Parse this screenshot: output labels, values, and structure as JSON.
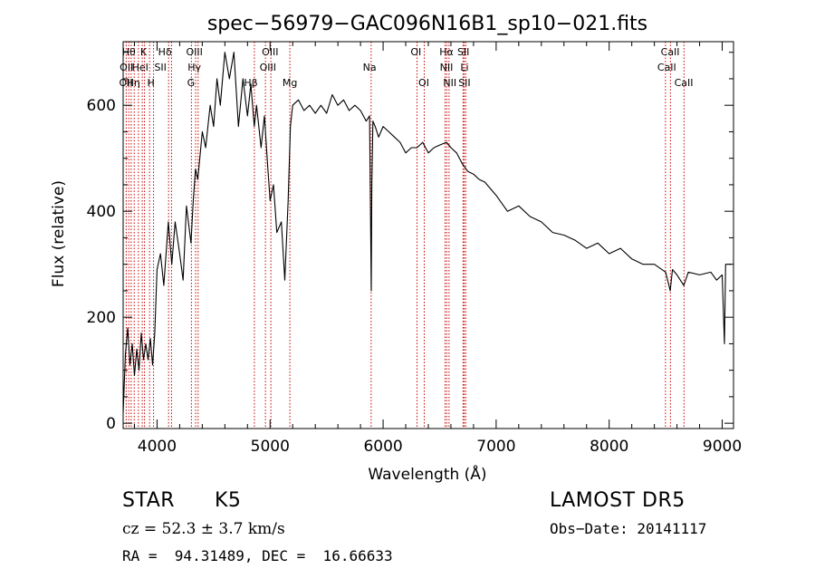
{
  "chart_data": {
    "type": "line",
    "title": "spec−56979−GAC096N16B1_sp10−021.fits",
    "xlabel": "Wavelength (Å)",
    "ylabel": "Flux (relative)",
    "xlim": [
      3700,
      9100
    ],
    "ylim": [
      -10,
      720
    ],
    "x_ticks": [
      4000,
      5000,
      6000,
      7000,
      8000,
      9000
    ],
    "x_tick_labels": [
      "4000",
      "5000",
      "6000",
      "7000",
      "8000",
      "9000"
    ],
    "y_ticks": [
      0,
      200,
      400,
      600
    ],
    "y_tick_labels": [
      "0",
      "200",
      "400",
      "600"
    ],
    "grid": false,
    "series": [
      {
        "name": "",
        "x": [
          3700,
          3720,
          3740,
          3760,
          3780,
          3800,
          3820,
          3840,
          3860,
          3880,
          3900,
          3920,
          3940,
          3960,
          3980,
          4000,
          4030,
          4060,
          4100,
          4130,
          4160,
          4200,
          4230,
          4260,
          4300,
          4320,
          4340,
          4360,
          4400,
          4430,
          4470,
          4500,
          4530,
          4560,
          4600,
          4640,
          4680,
          4720,
          4760,
          4800,
          4830,
          4860,
          4880,
          4920,
          4950,
          4980,
          5000,
          5030,
          5060,
          5100,
          5130,
          5160,
          5180,
          5200,
          5250,
          5300,
          5350,
          5400,
          5450,
          5500,
          5550,
          5600,
          5650,
          5700,
          5750,
          5800,
          5850,
          5880,
          5895,
          5900,
          5910,
          5930,
          5960,
          6000,
          6050,
          6100,
          6150,
          6200,
          6250,
          6300,
          6350,
          6400,
          6450,
          6500,
          6560,
          6600,
          6650,
          6700,
          6750,
          6800,
          6850,
          6900,
          7000,
          7100,
          7200,
          7300,
          7400,
          7500,
          7600,
          7700,
          7800,
          7900,
          8000,
          8100,
          8200,
          8300,
          8400,
          8500,
          8540,
          8560,
          8600,
          8660,
          8700,
          8800,
          8900,
          8950,
          9000,
          9020,
          9030,
          9040,
          9060,
          9080
        ],
        "values": [
          20,
          130,
          180,
          110,
          150,
          90,
          140,
          100,
          170,
          120,
          150,
          120,
          160,
          110,
          170,
          290,
          320,
          260,
          380,
          300,
          380,
          320,
          270,
          410,
          340,
          420,
          480,
          460,
          550,
          520,
          600,
          560,
          650,
          600,
          700,
          650,
          700,
          560,
          650,
          580,
          640,
          560,
          600,
          520,
          580,
          480,
          420,
          450,
          360,
          380,
          270,
          420,
          560,
          600,
          610,
          590,
          600,
          585,
          600,
          585,
          620,
          600,
          610,
          590,
          600,
          590,
          570,
          580,
          250,
          450,
          570,
          560,
          540,
          560,
          550,
          540,
          530,
          510,
          520,
          520,
          530,
          510,
          520,
          525,
          530,
          520,
          510,
          490,
          475,
          470,
          460,
          455,
          430,
          400,
          410,
          390,
          380,
          360,
          355,
          345,
          330,
          340,
          320,
          330,
          310,
          300,
          300,
          285,
          250,
          290,
          280,
          260,
          285,
          280,
          285,
          270,
          280,
          150,
          300,
          300,
          300,
          300
        ]
      }
    ],
    "lines": [
      {
        "wavelength": 3727,
        "label": "OII"
      },
      {
        "wavelength": 3750,
        "label": "Hθ"
      },
      {
        "wavelength": 3771,
        "label": "Hη"
      },
      {
        "wavelength": 3798,
        "label": "Hη"
      },
      {
        "wavelength": 3835,
        "label": "Hη"
      },
      {
        "wavelength": 3869,
        "label": "HeI"
      },
      {
        "wavelength": 3889,
        "label": "HeI"
      },
      {
        "wavelength": 3934,
        "label": "K"
      },
      {
        "wavelength": 3969,
        "label": "H"
      },
      {
        "wavelength": 4102,
        "label": "Hδ"
      },
      {
        "wavelength": 4128,
        "label": "SII"
      },
      {
        "wavelength": 4304,
        "label": "G"
      },
      {
        "wavelength": 4341,
        "label": "Hγ"
      },
      {
        "wavelength": 4363,
        "label": "OIII"
      },
      {
        "wavelength": 4861,
        "label": "Hβ"
      },
      {
        "wavelength": 4959,
        "label": "OIII"
      },
      {
        "wavelength": 5007,
        "label": "OIII"
      },
      {
        "wavelength": 5175,
        "label": "Mg"
      },
      {
        "wavelength": 5894,
        "label": "Na"
      },
      {
        "wavelength": 6300,
        "label": "OI"
      },
      {
        "wavelength": 6364,
        "label": "OI"
      },
      {
        "wavelength": 6548,
        "label": "NII"
      },
      {
        "wavelength": 6563,
        "label": "Hα"
      },
      {
        "wavelength": 6583,
        "label": "NII"
      },
      {
        "wavelength": 6707,
        "label": "Li"
      },
      {
        "wavelength": 6717,
        "label": "SII"
      },
      {
        "wavelength": 6731,
        "label": "SII"
      },
      {
        "wavelength": 8498,
        "label": "CaII"
      },
      {
        "wavelength": 8542,
        "label": "CaII"
      },
      {
        "wavelength": 8662,
        "label": "CaII"
      }
    ],
    "line_labels": [
      {
        "text": "Hθ",
        "wavelength": 3750,
        "row": 0
      },
      {
        "text": "K",
        "wavelength": 3880,
        "row": 0
      },
      {
        "text": "Hδ",
        "wavelength": 4070,
        "row": 0
      },
      {
        "text": "OIII",
        "wavelength": 4330,
        "row": 0
      },
      {
        "text": "OIII",
        "wavelength": 5000,
        "row": 0
      },
      {
        "text": "OI",
        "wavelength": 6290,
        "row": 0
      },
      {
        "text": "Hα",
        "wavelength": 6560,
        "row": 0
      },
      {
        "text": "SII",
        "wavelength": 6710,
        "row": 0
      },
      {
        "text": "CaII",
        "wavelength": 8540,
        "row": 0
      },
      {
        "text": "OII",
        "wavelength": 3730,
        "row": 1
      },
      {
        "text": "HeI",
        "wavelength": 3850,
        "row": 1
      },
      {
        "text": "SII",
        "wavelength": 4030,
        "row": 1
      },
      {
        "text": "Hγ",
        "wavelength": 4330,
        "row": 1
      },
      {
        "text": "OIII",
        "wavelength": 4980,
        "row": 1
      },
      {
        "text": "Na",
        "wavelength": 5880,
        "row": 1
      },
      {
        "text": "NII",
        "wavelength": 6560,
        "row": 1
      },
      {
        "text": "Li",
        "wavelength": 6720,
        "row": 1
      },
      {
        "text": "CaII",
        "wavelength": 8510,
        "row": 1
      },
      {
        "text": "OII",
        "wavelength": 3725,
        "row": 2
      },
      {
        "text": "Hη",
        "wavelength": 3790,
        "row": 2
      },
      {
        "text": "H",
        "wavelength": 3945,
        "row": 2
      },
      {
        "text": "G",
        "wavelength": 4300,
        "row": 2
      },
      {
        "text": "Hβ",
        "wavelength": 4830,
        "row": 2
      },
      {
        "text": "Mg",
        "wavelength": 5175,
        "row": 2
      },
      {
        "text": "OI",
        "wavelength": 6360,
        "row": 2
      },
      {
        "text": "NII",
        "wavelength": 6590,
        "row": 2
      },
      {
        "text": "SII",
        "wavelength": 6720,
        "row": 2
      },
      {
        "text": "CaII",
        "wavelength": 8660,
        "row": 2
      }
    ]
  },
  "info": {
    "object_class": "STAR",
    "subclass": "K5",
    "survey": "LAMOST DR5",
    "cz": "cz = 52.3 ± 3.7 km/s",
    "obs_date": "Obs−Date: 20141117",
    "coords": "RA =  94.31489, DEC =  16.66633"
  },
  "colors": {
    "spectrum": "#000000",
    "line_marker": "#cc0000",
    "axes": "#000000"
  }
}
